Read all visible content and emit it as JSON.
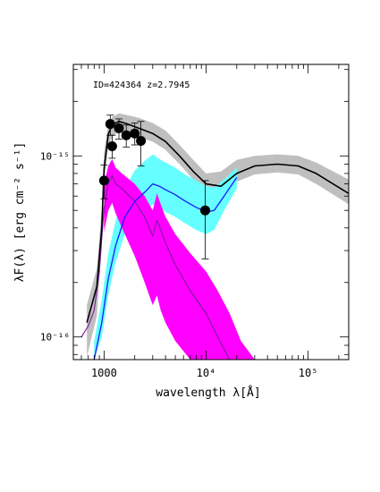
{
  "chart_data": {
    "type": "line",
    "annotation": "ID=424364 z=2.7945",
    "xlabel": "wavelength λ[Å]",
    "ylabel": "λF(λ) [erg cm⁻² s⁻¹]",
    "x_scale": "log",
    "y_scale": "log",
    "xlim": [
      500,
      250000
    ],
    "ylim": [
      7.5e-17,
      3.2e-15
    ],
    "x_ticks": [
      {
        "value": 1000,
        "label": "1000"
      },
      {
        "value": 10000,
        "label": "10⁴"
      },
      {
        "value": 100000,
        "label": "10⁵"
      }
    ],
    "y_ticks": [
      {
        "value": 1e-16,
        "label": "10⁻¹⁶"
      },
      {
        "value": 1e-15,
        "label": "10⁻¹⁵"
      }
    ],
    "grid": false,
    "legend": "none",
    "colors": {
      "total": "#000000",
      "total_band": "#bfbfbf",
      "agn": "#1a1aff",
      "agn_band": "#66ffff",
      "stellar": "#7a1a9e",
      "stellar_band": "#ff00ff"
    },
    "series": [
      {
        "id": "total",
        "style": "line",
        "x": [
          680,
          850,
          950,
          1000,
          1100,
          1200,
          1400,
          1700,
          2200,
          3000,
          4000,
          5500,
          7500,
          10000,
          14000,
          20000,
          30000,
          50000,
          80000,
          120000,
          250000
        ],
        "y": [
          1.2e-16,
          1.9e-16,
          4e-16,
          8.5e-16,
          1.32e-15,
          1.48e-15,
          1.55e-15,
          1.5e-15,
          1.42e-15,
          1.33e-15,
          1.2e-15,
          1e-15,
          8.2e-16,
          7e-16,
          6.8e-16,
          8e-16,
          8.8e-16,
          9e-16,
          8.8e-16,
          8e-16,
          6.2e-16
        ]
      },
      {
        "id": "total_band",
        "style": "band",
        "x": [
          680,
          850,
          950,
          1000,
          1100,
          1200,
          1400,
          1700,
          2200,
          3000,
          4000,
          5500,
          7500,
          10000,
          14000,
          20000,
          30000,
          50000,
          80000,
          120000,
          250000
        ],
        "low": [
          7.8e-17,
          1.3e-16,
          3.2e-16,
          7e-16,
          1.12e-15,
          1.28e-15,
          1.36e-15,
          1.32e-15,
          1.26e-15,
          1.2e-15,
          1.08e-15,
          9e-16,
          7.4e-16,
          6.4e-16,
          6.2e-16,
          7.2e-16,
          7.9e-16,
          8.1e-16,
          7.9e-16,
          7e-16,
          5.4e-16
        ],
        "high": [
          1.5e-16,
          2.4e-16,
          5e-16,
          1.05e-15,
          1.48e-15,
          1.64e-15,
          1.72e-15,
          1.68e-15,
          1.62e-15,
          1.52e-15,
          1.38e-15,
          1.15e-15,
          9.5e-16,
          8e-16,
          8.2e-16,
          9.5e-16,
          1e-15,
          1.02e-15,
          1e-15,
          9.2e-16,
          7.4e-16
        ]
      },
      {
        "id": "agn",
        "style": "line",
        "x": [
          800,
          950,
          1100,
          1300,
          1600,
          2000,
          2500,
          3000,
          3500,
          4000,
          5000,
          6000,
          8000,
          10000,
          12000,
          15000,
          20000
        ],
        "y": [
          7.5e-17,
          1.2e-16,
          2.1e-16,
          3.2e-16,
          4.6e-16,
          5.6e-16,
          6.3e-16,
          7e-16,
          6.8e-16,
          6.5e-16,
          6.1e-16,
          5.7e-16,
          5.2e-16,
          4.9e-16,
          5e-16,
          6e-16,
          7.6e-16
        ]
      },
      {
        "id": "agn_band",
        "style": "band",
        "x": [
          800,
          950,
          1100,
          1300,
          1600,
          2000,
          2500,
          3000,
          3500,
          4000,
          5000,
          6000,
          8000,
          10000,
          12000,
          15000,
          20000
        ],
        "low": [
          7.5e-17,
          1e-16,
          1.7e-16,
          2.6e-16,
          3.7e-16,
          4.4e-16,
          4.9e-16,
          5.4e-16,
          5.2e-16,
          4.9e-16,
          4.6e-16,
          4.3e-16,
          3.9e-16,
          3.7e-16,
          3.9e-16,
          5e-16,
          6.6e-16
        ],
        "high": [
          9.5e-17,
          1.6e-16,
          2.9e-16,
          4.4e-16,
          6.6e-16,
          8.3e-16,
          9.4e-16,
          1.02e-15,
          9.6e-16,
          9.2e-16,
          8.6e-16,
          8e-16,
          7.3e-16,
          6.8e-16,
          6.7e-16,
          7.4e-16,
          8.6e-16
        ]
      },
      {
        "id": "stellar",
        "style": "line",
        "x": [
          600,
          700,
          800,
          900,
          1000,
          1100,
          1200,
          1300,
          1500,
          2000,
          2500,
          3000,
          3300,
          3600,
          4000,
          5000,
          7000,
          10000,
          13000,
          17000
        ],
        "y": [
          1e-16,
          1.15e-16,
          1.4e-16,
          2.3e-16,
          5.2e-16,
          7e-16,
          7.8e-16,
          7e-16,
          6.6e-16,
          5.6e-16,
          4.6e-16,
          3.6e-16,
          4.4e-16,
          3.9e-16,
          3.3e-16,
          2.5e-16,
          1.8e-16,
          1.35e-16,
          1e-16,
          7.5e-17
        ]
      },
      {
        "id": "stellar_band",
        "style": "band",
        "x": [
          1000,
          1100,
          1200,
          1300,
          1500,
          2000,
          2500,
          3000,
          3300,
          3600,
          4000,
          5000,
          7000,
          10000,
          13000,
          17000,
          22000,
          30000
        ],
        "low": [
          3.8e-16,
          5e-16,
          5.5e-16,
          4.8e-16,
          4e-16,
          2.8e-16,
          2e-16,
          1.5e-16,
          1.7e-16,
          1.4e-16,
          1.2e-16,
          9.5e-17,
          7.5e-17,
          7.5e-17,
          7.5e-17,
          7.5e-17,
          7.5e-17,
          7.5e-17
        ],
        "high": [
          7e-16,
          8.8e-16,
          9.6e-16,
          8.6e-16,
          8e-16,
          7e-16,
          6e-16,
          5e-16,
          6.2e-16,
          5.4e-16,
          4.6e-16,
          3.7e-16,
          2.9e-16,
          2.3e-16,
          1.8e-16,
          1.35e-16,
          9.5e-17,
          7.5e-17
        ]
      }
    ],
    "points": [
      {
        "x": 1000,
        "y": 7.3e-16,
        "err_low": 5.8e-16,
        "err_high": 8.9e-16
      },
      {
        "x": 1150,
        "y": 1.5e-15,
        "err_low": 1.3e-15,
        "err_high": 1.68e-15
      },
      {
        "x": 1200,
        "y": 1.13e-15,
        "err_low": 9.7e-16,
        "err_high": 1.3e-15
      },
      {
        "x": 1400,
        "y": 1.42e-15,
        "err_low": 1.24e-15,
        "err_high": 1.6e-15
      },
      {
        "x": 1650,
        "y": 1.3e-15,
        "err_low": 1.12e-15,
        "err_high": 1.48e-15
      },
      {
        "x": 2000,
        "y": 1.33e-15,
        "err_low": 1.15e-15,
        "err_high": 1.52e-15
      },
      {
        "x": 2300,
        "y": 1.21e-15,
        "err_low": 8.8e-16,
        "err_high": 1.55e-15
      },
      {
        "x": 9800,
        "y": 5e-16,
        "err_low": 2.7e-16,
        "err_high": 7.3e-16
      }
    ]
  }
}
